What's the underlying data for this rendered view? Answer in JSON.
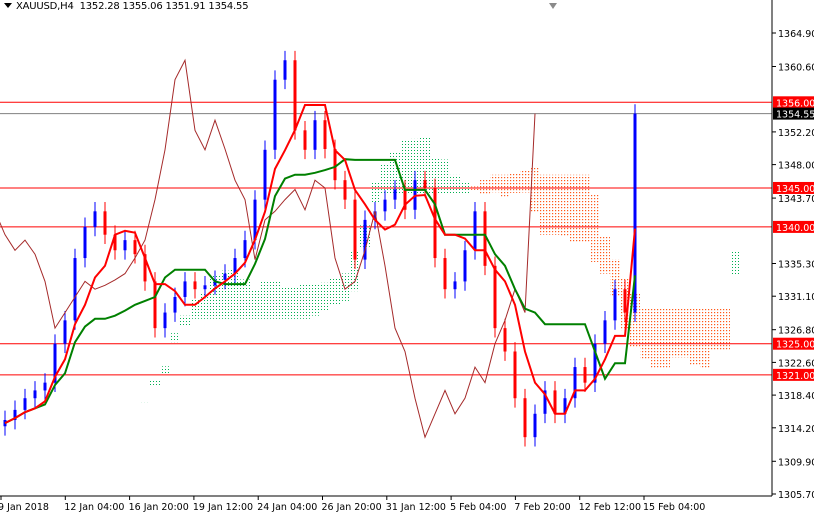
{
  "header": {
    "symbol": "XAUUSD,H4",
    "ohlc": "1352.28 1355.06 1351.91 1354.55"
  },
  "chart_data": {
    "type": "candlestick",
    "symbol": "XAUUSD",
    "timeframe": "H4",
    "ylim": [
      1305.7,
      1364.9
    ],
    "y_ticks": [
      "1364.90",
      "1360.60",
      "1352.20",
      "1348.00",
      "1343.70",
      "1335.30",
      "1331.10",
      "1326.80",
      "1322.60",
      "1318.40",
      "1314.20",
      "1309.90",
      "1305.70"
    ],
    "x_ticks": [
      "9 Jan 2018",
      "12 Jan 04:00",
      "16 Jan 20:00",
      "19 Jan 12:00",
      "24 Jan 04:00",
      "26 Jan 20:00",
      "31 Jan 12:00",
      "5 Feb 04:00",
      "7 Feb 20:00",
      "12 Feb 12:00",
      "15 Feb 04:00"
    ],
    "current_price": {
      "value": 1354.55,
      "label": "1354.55"
    },
    "levels": [
      {
        "value": 1356.0,
        "label": "1356.00"
      },
      {
        "value": 1345.0,
        "label": "1345.00"
      },
      {
        "value": 1340.0,
        "label": "1340.00"
      },
      {
        "value": 1325.0,
        "label": "1325.00"
      },
      {
        "value": 1321.0,
        "label": "1321.00"
      }
    ],
    "closes": [
      1315.2,
      1316.5,
      1318,
      1319,
      1320,
      1325,
      1328,
      1336,
      1340,
      1342,
      1339,
      1337,
      1338.3,
      1336.5,
      1333,
      1327,
      1329,
      1331,
      1333,
      1332,
      1332.5,
      1333.2,
      1334,
      1336,
      1338.3,
      1343.5,
      1349.9,
      1358.9,
      1361.4,
      1352.4,
      1349.9,
      1353.7,
      1350,
      1346,
      1343.5,
      1335.8,
      1340.9,
      1342,
      1343.5,
      1344.8,
      1342.2,
      1346,
      1345,
      1336,
      1332,
      1333,
      1337,
      1342,
      1335,
      1327,
      1324,
      1318,
      1313,
      1316,
      1319,
      1316,
      1318,
      1322,
      1320,
      1325,
      1328,
      1332,
      1329,
      1354.55
    ],
    "indicator": "Ichimoku Kinko Hyo",
    "colors": {
      "bull": "#0000ff",
      "bear": "#ff0000",
      "tenkan": "#ff0000",
      "kijun": "#008000",
      "chikou": "#a52a2a",
      "cloud_up": "#00b050",
      "cloud_down": "#ff6020",
      "level": "#ff0000",
      "current": "#000000"
    }
  }
}
